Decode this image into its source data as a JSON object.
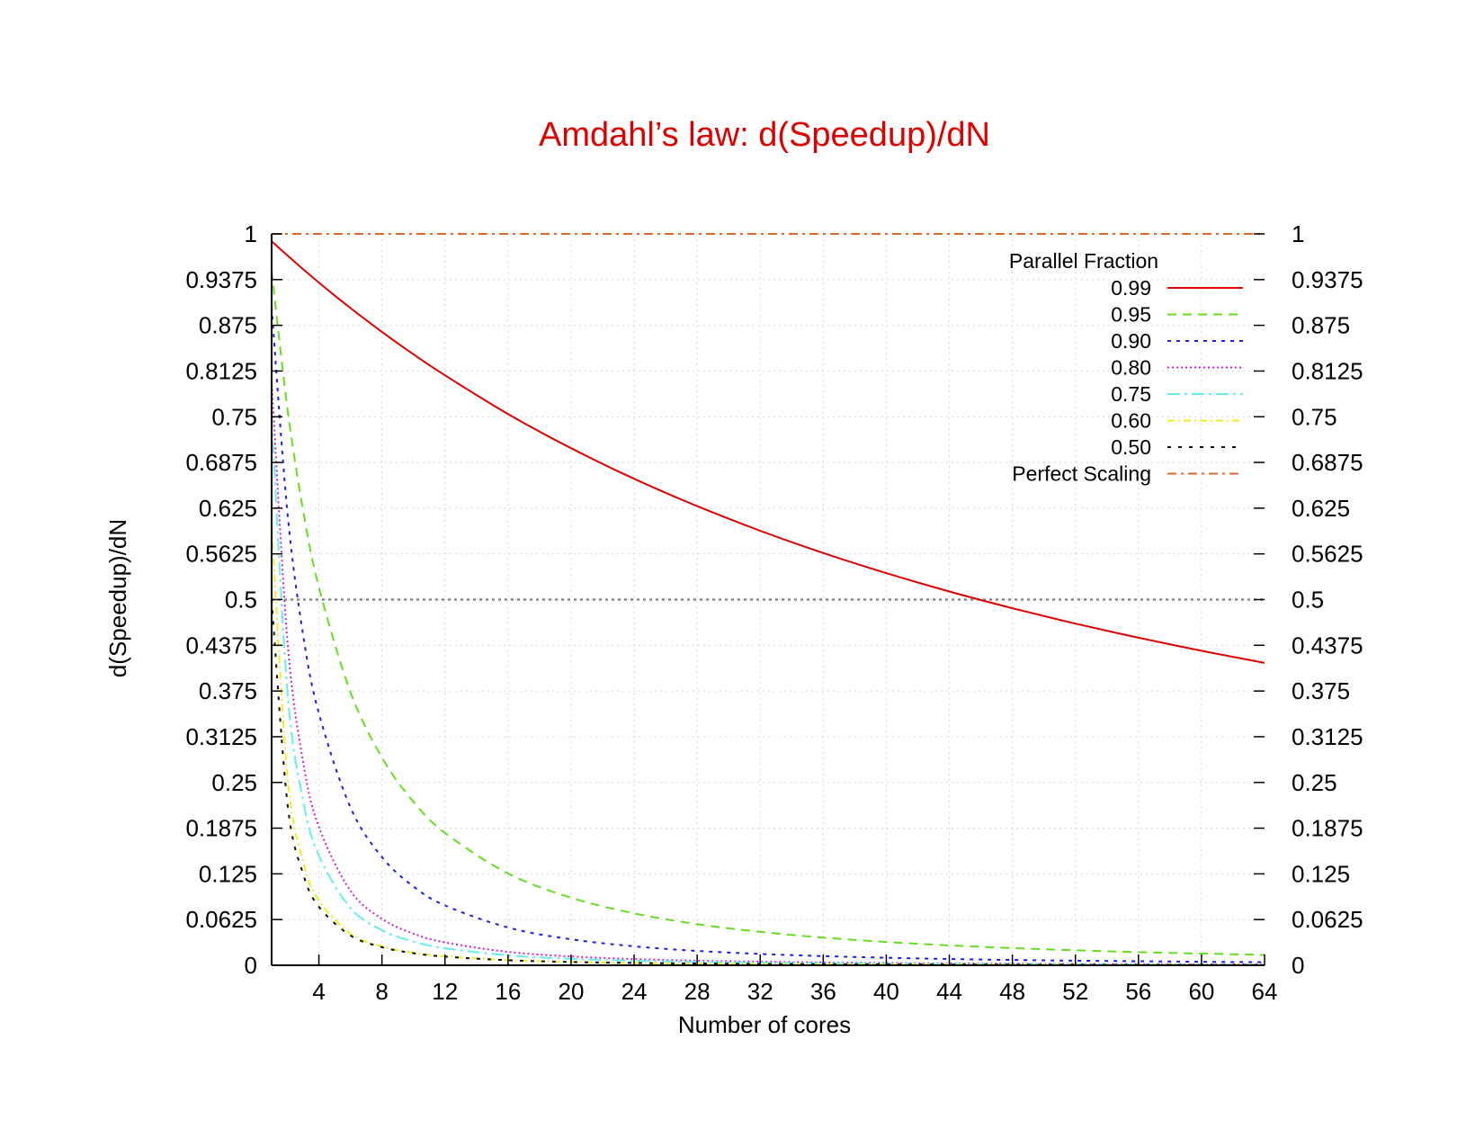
{
  "chart_data": {
    "type": "line",
    "title": "Amdahl’s law: d(Speedup)/dN",
    "title_color": "#dd0000",
    "xlabel": "Number of cores",
    "ylabel": "d(Speedup)/dN",
    "xlim": [
      1,
      64
    ],
    "ylim": [
      0,
      1
    ],
    "x_ticks": [
      "4",
      "8",
      "12",
      "16",
      "20",
      "24",
      "28",
      "32",
      "36",
      "40",
      "44",
      "48",
      "52",
      "56",
      "60",
      "64"
    ],
    "y_ticks": [
      "0",
      "0.0625",
      "0.125",
      "0.1875",
      "0.25",
      "0.3125",
      "0.375",
      "0.4375",
      "0.5",
      "0.5625",
      "0.625",
      "0.6875",
      "0.75",
      "0.8125",
      "0.875",
      "0.9375",
      "1"
    ],
    "grid": true,
    "legend_title": "Parallel Fraction",
    "legend_position": "top-right",
    "x": [
      1,
      2,
      3,
      4,
      6,
      8,
      10,
      12,
      16,
      20,
      24,
      28,
      32,
      36,
      40,
      44,
      48,
      52,
      56,
      60,
      64
    ],
    "series": [
      {
        "name": "0.99",
        "color": "#dd0000",
        "dash": "",
        "values": [
          0.99,
          0.9706,
          0.9518,
          0.9335,
          0.8987,
          0.866,
          0.8354,
          0.8066,
          0.7538,
          0.707,
          0.6652,
          0.6278,
          0.5941,
          0.5637,
          0.5362,
          0.5111,
          0.4882,
          0.4672,
          0.4479,
          0.43,
          0.4135
        ]
      },
      {
        "name": "0.95",
        "color": "#66dd22",
        "dash": "10 7",
        "values": [
          0.95,
          0.7619,
          0.6219,
          0.5169,
          0.3739,
          0.284,
          0.2236,
          0.1809,
          0.1255,
          0.0924,
          0.071,
          0.0562,
          0.0457,
          0.0379,
          0.0319,
          0.0272,
          0.0235,
          0.0205,
          0.018,
          0.016,
          0.0142
        ]
      },
      {
        "name": "0.90",
        "color": "#1f1fdd",
        "dash": "4 6",
        "values": [
          0.9,
          0.6198,
          0.4518,
          0.3444,
          0.216,
          0.1479,
          0.1077,
          0.0818,
          0.0516,
          0.0355,
          0.0259,
          0.0197,
          0.0155,
          0.0125,
          0.0103,
          0.0086,
          0.0073,
          0.0063,
          0.0055,
          0.0048,
          0.0042
        ]
      },
      {
        "name": "0.80",
        "color": "#cc22cc",
        "dash": "2 3",
        "values": [
          0.8,
          0.4444,
          0.278,
          0.189,
          0.102,
          0.0635,
          0.0432,
          0.0313,
          0.0183,
          0.012,
          0.0085,
          0.0063,
          0.0049,
          0.0039,
          0.0032,
          0.0026,
          0.0022,
          0.0019,
          0.0016,
          0.0014,
          0.0013
        ]
      },
      {
        "name": "0.75",
        "color": "#66eeee",
        "dash": "14 5 3 5",
        "values": [
          0.75,
          0.375,
          0.225,
          0.15,
          0.0783,
          0.048,
          0.0324,
          0.0233,
          0.0136,
          0.0089,
          0.0063,
          0.0047,
          0.0036,
          0.0029,
          0.0023,
          0.0019,
          0.0016,
          0.0014,
          0.0012,
          0.001,
          0.0009
        ]
      },
      {
        "name": "0.60",
        "color": "#eeee22",
        "dash": "8 4 2 4",
        "values": [
          0.6,
          0.2604,
          0.1417,
          0.0888,
          0.0434,
          0.0258,
          0.0171,
          0.0122,
          0.0071,
          0.0046,
          0.0032,
          0.0024,
          0.0018,
          0.0015,
          0.0012,
          0.001,
          0.0008,
          0.0007,
          0.0006,
          0.0005,
          0.0005
        ]
      },
      {
        "name": "0.50",
        "color": "#111111",
        "dash": "4 8",
        "values": [
          0.5,
          0.2222,
          0.125,
          0.08,
          0.0408,
          0.0247,
          0.0165,
          0.0118,
          0.0069,
          0.0045,
          0.0032,
          0.0024,
          0.0018,
          0.0015,
          0.0012,
          0.001,
          0.0008,
          0.0007,
          0.0006,
          0.0005,
          0.0005
        ]
      },
      {
        "name": "Perfect Scaling",
        "color": "#e0662a",
        "dash": "10 5 3 5",
        "values": [
          1,
          1,
          1,
          1,
          1,
          1,
          1,
          1,
          1,
          1,
          1,
          1,
          1,
          1,
          1,
          1,
          1,
          1,
          1,
          1,
          1
        ]
      }
    ],
    "reference_line": {
      "y": 0.5,
      "color": "#888888"
    }
  }
}
